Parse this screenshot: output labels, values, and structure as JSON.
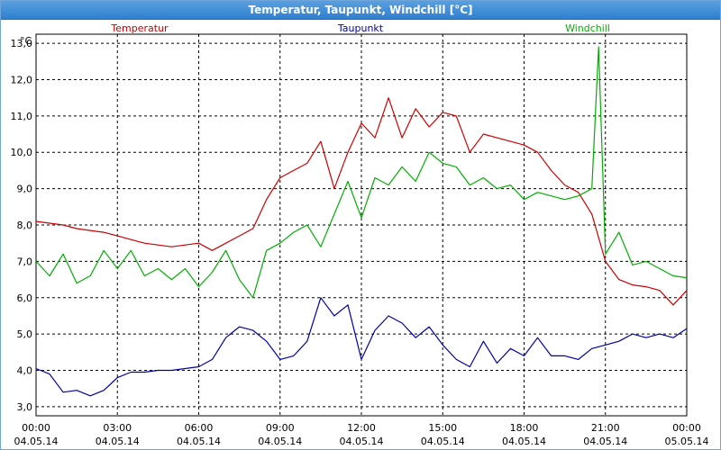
{
  "window": {
    "title": "Temperatur, Taupunkt, Windchill [°C]"
  },
  "colors": {
    "temperature": "#cc0000",
    "dewpoint": "#0000aa",
    "windchill": "#00b000",
    "grid": "#000000"
  },
  "chart_data": {
    "type": "line",
    "title": "Temperatur, Taupunkt, Windchill [°C]",
    "ylabel": "°C",
    "ylim": [
      2.75,
      13.25
    ],
    "yticks": [
      "3,0",
      "4,0",
      "5,0",
      "6,0",
      "7,0",
      "8,0",
      "9,0",
      "10,0",
      "11,0",
      "12,0",
      "13,0"
    ],
    "xlim": [
      "04.05.14 00:00",
      "05.05.14 00:00"
    ],
    "xticks": [
      {
        "time": "00:00",
        "date": "04.05.14"
      },
      {
        "time": "03:00",
        "date": "04.05.14"
      },
      {
        "time": "06:00",
        "date": "04.05.14"
      },
      {
        "time": "09:00",
        "date": "04.05.14"
      },
      {
        "time": "12:00",
        "date": "04.05.14"
      },
      {
        "time": "15:00",
        "date": "04.05.14"
      },
      {
        "time": "18:00",
        "date": "04.05.14"
      },
      {
        "time": "21:00",
        "date": "04.05.14"
      },
      {
        "time": "00:00",
        "date": "05.05.14"
      }
    ],
    "grid": true,
    "legend_position": "top",
    "series": [
      {
        "name": "Temperatur",
        "points": [
          [
            0,
            8.1
          ],
          [
            0.5,
            8.05
          ],
          [
            1,
            8.0
          ],
          [
            1.5,
            7.9
          ],
          [
            2,
            7.85
          ],
          [
            2.5,
            7.8
          ],
          [
            3,
            7.7
          ],
          [
            3.5,
            7.6
          ],
          [
            4,
            7.5
          ],
          [
            4.5,
            7.45
          ],
          [
            5,
            7.4
          ],
          [
            5.5,
            7.45
          ],
          [
            6,
            7.5
          ],
          [
            6.5,
            7.3
          ],
          [
            7,
            7.5
          ],
          [
            7.5,
            7.7
          ],
          [
            8,
            7.9
          ],
          [
            8.5,
            8.7
          ],
          [
            9,
            9.3
          ],
          [
            9.5,
            9.5
          ],
          [
            10,
            9.7
          ],
          [
            10.5,
            10.3
          ],
          [
            11,
            9.0
          ],
          [
            11.5,
            10.0
          ],
          [
            12,
            10.8
          ],
          [
            12.5,
            10.4
          ],
          [
            13,
            11.5
          ],
          [
            13.5,
            10.4
          ],
          [
            14,
            11.2
          ],
          [
            14.5,
            10.7
          ],
          [
            15,
            11.1
          ],
          [
            15.5,
            11.0
          ],
          [
            16,
            10.0
          ],
          [
            16.5,
            10.5
          ],
          [
            17,
            10.4
          ],
          [
            17.5,
            10.3
          ],
          [
            18,
            10.2
          ],
          [
            18.5,
            10.0
          ],
          [
            19,
            9.5
          ],
          [
            19.5,
            9.1
          ],
          [
            20,
            8.9
          ],
          [
            20.5,
            8.3
          ],
          [
            21,
            7.0
          ],
          [
            21.5,
            6.5
          ],
          [
            22,
            6.35
          ],
          [
            22.5,
            6.3
          ],
          [
            23,
            6.2
          ],
          [
            23.5,
            5.8
          ],
          [
            24,
            6.2
          ]
        ]
      },
      {
        "name": "Taupunkt",
        "points": [
          [
            0,
            4.05
          ],
          [
            0.5,
            3.9
          ],
          [
            1,
            3.4
          ],
          [
            1.5,
            3.45
          ],
          [
            2,
            3.3
          ],
          [
            2.5,
            3.45
          ],
          [
            3,
            3.8
          ],
          [
            3.5,
            3.95
          ],
          [
            4,
            3.95
          ],
          [
            4.5,
            4.0
          ],
          [
            5,
            4.0
          ],
          [
            5.5,
            4.05
          ],
          [
            6,
            4.1
          ],
          [
            6.5,
            4.3
          ],
          [
            7,
            4.9
          ],
          [
            7.5,
            5.2
          ],
          [
            8,
            5.1
          ],
          [
            8.5,
            4.8
          ],
          [
            9,
            4.3
          ],
          [
            9.5,
            4.4
          ],
          [
            10,
            4.8
          ],
          [
            10.5,
            6.0
          ],
          [
            11,
            5.5
          ],
          [
            11.5,
            5.8
          ],
          [
            12,
            4.3
          ],
          [
            12.5,
            5.1
          ],
          [
            13,
            5.5
          ],
          [
            13.5,
            5.3
          ],
          [
            14,
            4.9
          ],
          [
            14.5,
            5.2
          ],
          [
            15,
            4.7
          ],
          [
            15.5,
            4.3
          ],
          [
            16,
            4.1
          ],
          [
            16.5,
            4.8
          ],
          [
            17,
            4.2
          ],
          [
            17.5,
            4.6
          ],
          [
            18,
            4.4
          ],
          [
            18.5,
            4.9
          ],
          [
            19,
            4.4
          ],
          [
            19.5,
            4.4
          ],
          [
            20,
            4.3
          ],
          [
            20.5,
            4.6
          ],
          [
            21,
            4.7
          ],
          [
            21.5,
            4.8
          ],
          [
            22,
            5.0
          ],
          [
            22.5,
            4.9
          ],
          [
            23,
            5.0
          ],
          [
            23.5,
            4.9
          ],
          [
            24,
            5.15
          ]
        ]
      },
      {
        "name": "Windchill",
        "points": [
          [
            0,
            7.0
          ],
          [
            0.5,
            6.6
          ],
          [
            1,
            7.2
          ],
          [
            1.5,
            6.4
          ],
          [
            2,
            6.6
          ],
          [
            2.5,
            7.3
          ],
          [
            3,
            6.8
          ],
          [
            3.5,
            7.3
          ],
          [
            4,
            6.6
          ],
          [
            4.5,
            6.8
          ],
          [
            5,
            6.5
          ],
          [
            5.5,
            6.8
          ],
          [
            6,
            6.3
          ],
          [
            6.5,
            6.7
          ],
          [
            7,
            7.3
          ],
          [
            7.5,
            6.5
          ],
          [
            8,
            6.0
          ],
          [
            8.5,
            7.3
          ],
          [
            9,
            7.5
          ],
          [
            9.5,
            7.8
          ],
          [
            10,
            8.0
          ],
          [
            10.5,
            7.4
          ],
          [
            11,
            8.3
          ],
          [
            11.5,
            9.2
          ],
          [
            12,
            8.2
          ],
          [
            12.5,
            9.3
          ],
          [
            13,
            9.1
          ],
          [
            13.5,
            9.6
          ],
          [
            14,
            9.2
          ],
          [
            14.5,
            10.0
          ],
          [
            15,
            9.7
          ],
          [
            15.5,
            9.6
          ],
          [
            16,
            9.1
          ],
          [
            16.5,
            9.3
          ],
          [
            17,
            9.0
          ],
          [
            17.5,
            9.1
          ],
          [
            18,
            8.7
          ],
          [
            18.5,
            8.9
          ],
          [
            19,
            8.8
          ],
          [
            19.5,
            8.7
          ],
          [
            20,
            8.8
          ],
          [
            20.5,
            9.0
          ],
          [
            20.75,
            12.9
          ],
          [
            21,
            7.2
          ],
          [
            21.5,
            7.8
          ],
          [
            22,
            6.9
          ],
          [
            22.5,
            7.0
          ],
          [
            23,
            6.8
          ],
          [
            23.5,
            6.6
          ],
          [
            24,
            6.55
          ]
        ]
      }
    ]
  }
}
